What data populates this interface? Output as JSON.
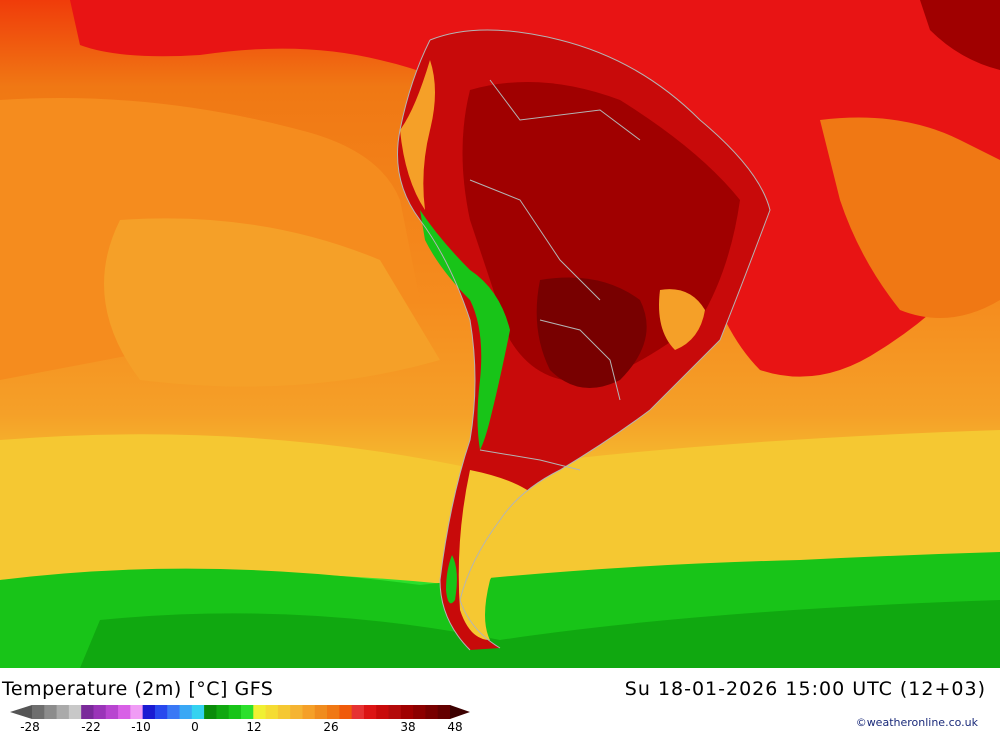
{
  "title": {
    "left": "Temperature (2m) [°C] GFS",
    "right": "Su 18-01-2026 15:00 UTC (12+03)"
  },
  "credit": "©weatheronline.co.uk",
  "legend": {
    "colors": [
      "#6e6e6e",
      "#8c8c8c",
      "#aaaaaa",
      "#c8c8c8",
      "#7a2a9a",
      "#9a34b8",
      "#b845d0",
      "#d860e6",
      "#f09cf5",
      "#1a1ad2",
      "#2848ee",
      "#3a78f5",
      "#3aa8f5",
      "#34d2f0",
      "#0a8c0a",
      "#10a810",
      "#18c418",
      "#2ce02c",
      "#f0f032",
      "#f5dc32",
      "#f5c832",
      "#f5b432",
      "#f5a028",
      "#f08c1e",
      "#f07814",
      "#f05a0a",
      "#e63232",
      "#dc1414",
      "#c80a0a",
      "#b40a0a",
      "#a00000",
      "#8c0000",
      "#780000",
      "#640000"
    ],
    "tick_labels": [
      "-28",
      "-22",
      "-10",
      "0",
      "12",
      "26",
      "38",
      "48"
    ],
    "tick_values": [
      -28,
      -22,
      -10,
      0,
      12,
      26,
      38,
      48
    ]
  },
  "map": {
    "variable": "Temperature (2m)",
    "unit": "°C",
    "model": "GFS",
    "region": "South America"
  }
}
